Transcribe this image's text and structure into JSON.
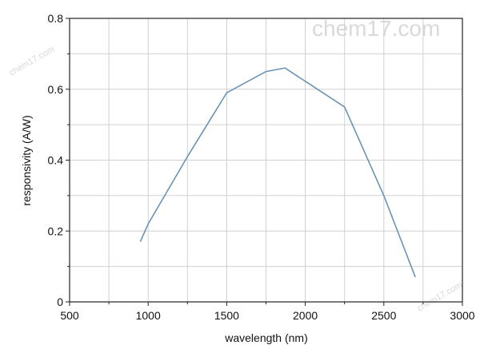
{
  "chart_data": {
    "type": "line",
    "xlabel": "wavelength (nm)",
    "ylabel": "responsivity (A/W)",
    "xlim": [
      500,
      3000
    ],
    "ylim": [
      0,
      0.8
    ],
    "xticks": [
      "500",
      "1000",
      "1500",
      "2000",
      "2500",
      "3000"
    ],
    "yticks": [
      "0",
      "0.2",
      "0.4",
      "0.6",
      "0.8"
    ],
    "grid": true,
    "series": [
      {
        "x": [
          950,
          1000,
          1250,
          1500,
          1750,
          1870,
          2250,
          2500,
          2700
        ],
        "y": [
          0.17,
          0.22,
          0.41,
          0.59,
          0.65,
          0.66,
          0.55,
          0.3,
          0.07
        ]
      }
    ],
    "line_color": "#6a93b5",
    "grid_color": "#d0d0d0"
  },
  "watermarks": {
    "main": "chem17.com",
    "small": "chem17.com"
  }
}
